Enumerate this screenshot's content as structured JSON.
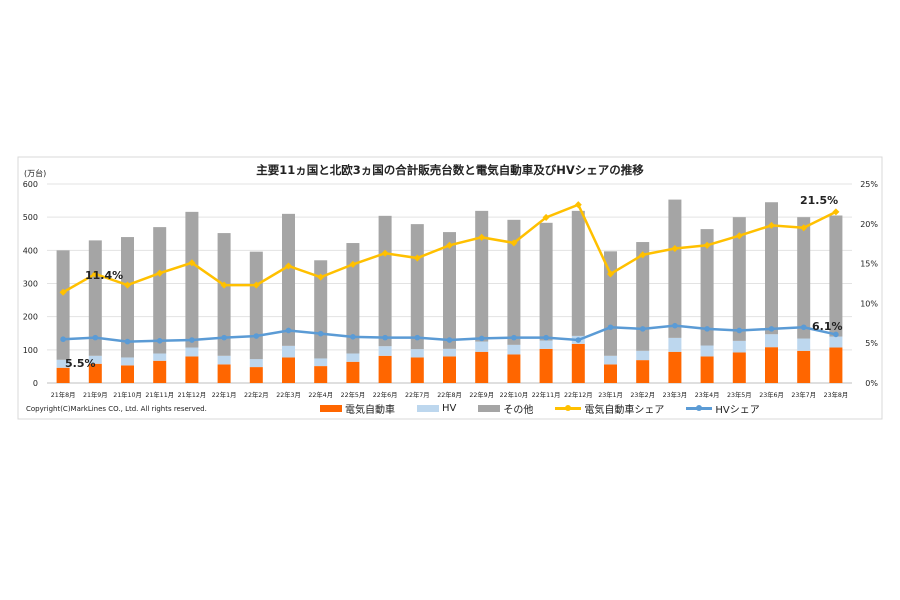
{
  "chart_data": {
    "type": "bar",
    "title": "主要11ヵ国と北欧3ヵ国の合計販売台数と電気自動車及びHVシェアの推移",
    "ylabel": "(万台)",
    "ylim": [
      0,
      600
    ],
    "yticks": [
      "0",
      "100",
      "200",
      "300",
      "400",
      "500",
      "600"
    ],
    "y2lim": [
      0,
      25
    ],
    "y2ticks": [
      "0%",
      "5%",
      "10%",
      "15%",
      "20%",
      "25%"
    ],
    "grid": true,
    "legend_position": "bottom",
    "stacked": true,
    "categories": [
      "21年8月",
      "21年9月",
      "21年10月",
      "21年11月",
      "21年12月",
      "22年1月",
      "22年2月",
      "22年3月",
      "22年4月",
      "22年5月",
      "22年6月",
      "22年7月",
      "22年8月",
      "22年9月",
      "22年10月",
      "22年11月",
      "22年12月",
      "23年1月",
      "23年2月",
      "23年3月",
      "23年4月",
      "23年5月",
      "23年6月",
      "23年7月",
      "23年8月"
    ],
    "series": [
      {
        "name": "電気自動車",
        "kind": "bar",
        "axis": "left",
        "color": "#ff6600",
        "values": [
          46,
          58,
          53,
          67,
          80,
          56,
          48,
          77,
          51,
          64,
          82,
          77,
          80,
          94,
          86,
          103,
          118,
          56,
          69,
          94,
          80,
          92,
          108,
          97,
          107
        ]
      },
      {
        "name": "HV",
        "kind": "bar",
        "axis": "left",
        "color": "#bdd7ee",
        "values": [
          24,
          24,
          24,
          22,
          27,
          26,
          24,
          35,
          23,
          25,
          29,
          25,
          23,
          31,
          29,
          25,
          24,
          26,
          28,
          42,
          33,
          35,
          39,
          37,
          33
        ]
      },
      {
        "name": "その他",
        "kind": "bar",
        "axis": "left",
        "color": "#a5a5a5",
        "values": [
          330,
          348,
          363,
          381,
          409,
          370,
          324,
          398,
          296,
          333,
          393,
          377,
          352,
          394,
          377,
          355,
          377,
          315,
          328,
          417,
          351,
          373,
          398,
          366,
          365
        ]
      },
      {
        "name": "電気自動車シェア",
        "kind": "line",
        "axis": "right",
        "color": "#ffc000",
        "values": [
          11.4,
          13.7,
          12.3,
          13.8,
          15.1,
          12.3,
          12.3,
          14.7,
          13.3,
          14.9,
          16.3,
          15.7,
          17.3,
          18.3,
          17.6,
          20.8,
          22.4,
          13.7,
          16.1,
          16.9,
          17.3,
          18.5,
          19.8,
          19.5,
          21.5
        ]
      },
      {
        "name": "HVシェア",
        "kind": "line",
        "axis": "right",
        "color": "#5b9bd5",
        "values": [
          5.5,
          5.7,
          5.2,
          5.3,
          5.4,
          5.7,
          5.9,
          6.6,
          6.2,
          5.8,
          5.7,
          5.7,
          5.4,
          5.6,
          5.7,
          5.7,
          5.4,
          7.0,
          6.8,
          7.2,
          6.8,
          6.6,
          6.8,
          7.0,
          6.1
        ]
      }
    ],
    "annotations": [
      "11.4%",
      "5.5%",
      "21.5%",
      "6.1%"
    ]
  },
  "copyright": "Copyright(C)MarkLines CO., Ltd. All rights reserved."
}
